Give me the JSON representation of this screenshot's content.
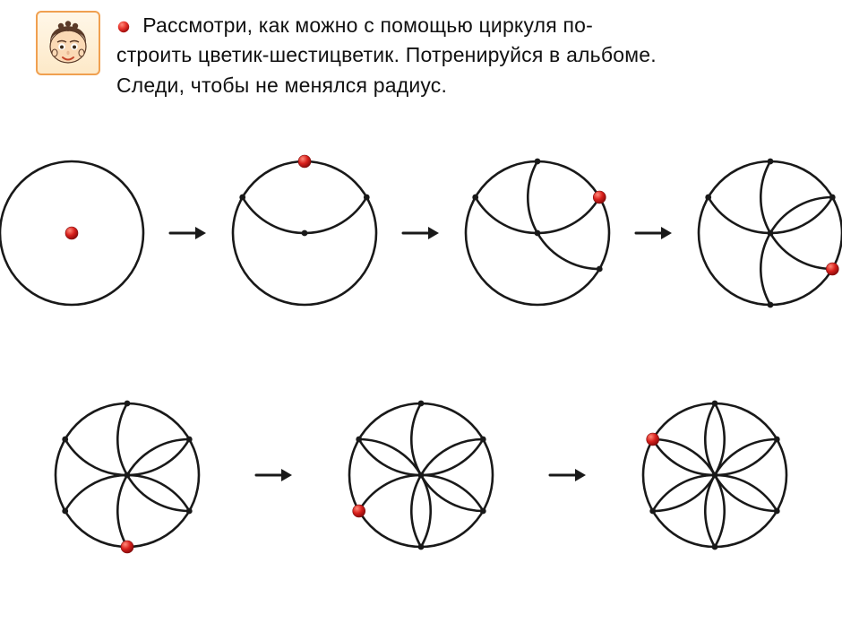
{
  "colors": {
    "stroke": "#191919",
    "red": "#d8201c",
    "red_highlight": "#f05a50",
    "avatar_border": "#f0a050",
    "skin": "#fbd9b5",
    "hair": "#5a3a28",
    "white": "#ffffff"
  },
  "text": {
    "line1": "Рассмотри, как можно с помощью циркуля по-",
    "line2": "строить цветик-шестицветик. Потренируйся в альбоме.",
    "line3": "Следи, чтобы не менялся радиус."
  },
  "geometry": {
    "circle_radius": 80,
    "stroke_width": 2.6,
    "red_dot_r": 7,
    "black_dot_r": 3.4,
    "svg_size": 200
  },
  "arrow": {
    "width": 44,
    "height": 24,
    "stroke_width": 3
  },
  "steps_row1": [
    {
      "arcs": 0,
      "red_at": "center"
    },
    {
      "arcs": 1,
      "red_at": 0
    },
    {
      "arcs": 2,
      "red_at": 1
    },
    {
      "arcs": 3,
      "red_at": 2
    }
  ],
  "steps_row2": [
    {
      "arcs": 4,
      "red_at": 3
    },
    {
      "arcs": 5,
      "red_at": 4
    },
    {
      "arcs": 6,
      "red_at": 5
    }
  ],
  "hex_points_deg": [
    270,
    330,
    30,
    90,
    150,
    210
  ]
}
